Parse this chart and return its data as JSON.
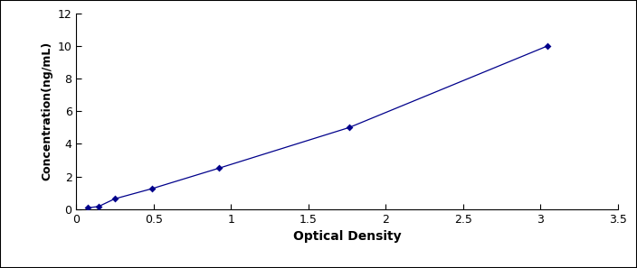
{
  "x_data": [
    0.076,
    0.143,
    0.247,
    0.488,
    0.919,
    1.763,
    3.044
  ],
  "y_data": [
    0.078,
    0.156,
    0.625,
    1.25,
    2.5,
    5.0,
    10.0
  ],
  "line_color": "#00008B",
  "marker_style": "D",
  "marker_size": 4,
  "marker_color": "#00008B",
  "line_style": "-",
  "line_width": 0.9,
  "xlabel": "Optical Density",
  "ylabel": "Concentration(ng/mL)",
  "xlim": [
    0,
    3.5
  ],
  "ylim": [
    0,
    12
  ],
  "xticks": [
    0,
    0.5,
    1.0,
    1.5,
    2.0,
    2.5,
    3.0,
    3.5
  ],
  "yticks": [
    0,
    2,
    4,
    6,
    8,
    10,
    12
  ],
  "xlabel_fontsize": 10,
  "ylabel_fontsize": 9,
  "tick_fontsize": 9,
  "background_color": "#ffffff",
  "border_color": "#000000",
  "fig_border": true,
  "fig_border_color": "#000000",
  "fig_border_linewidth": 1.5
}
